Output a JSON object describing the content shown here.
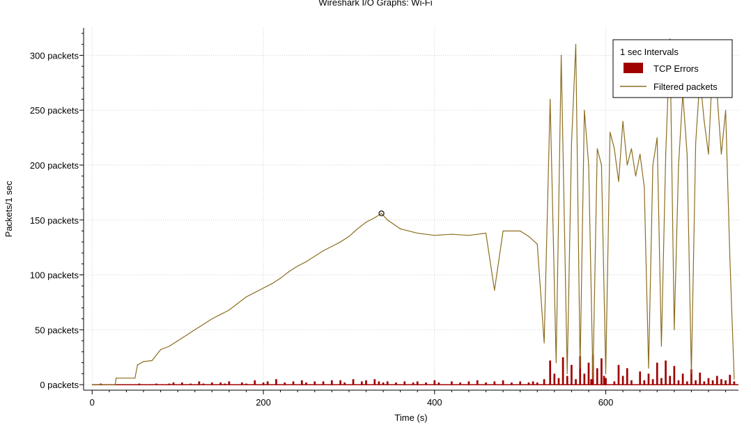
{
  "window_title": "Wireshark I/O Graphs: Wi-Fi",
  "chart_data": {
    "type": "line",
    "title": "Wireshark I/O Graphs: Wi-Fi",
    "xlabel": "Time (s)",
    "ylabel": "Packets/1 sec",
    "xlim": [
      -10,
      755
    ],
    "ylim": [
      -5,
      325
    ],
    "x_ticks": [
      0,
      200,
      400,
      600
    ],
    "y_ticks": [
      0,
      50,
      100,
      150,
      200,
      250,
      300
    ],
    "y_tick_suffix": " packets",
    "grid": true,
    "legend": {
      "title": "1 sec Intervals",
      "placement": "top-right",
      "entries": [
        {
          "name": "TCP Errors",
          "style": "bar",
          "color": "#a00000"
        },
        {
          "name": "Filtered packets",
          "style": "line",
          "color": "#8b6d1e"
        }
      ]
    },
    "marker_point": {
      "x": 338,
      "y": 156
    },
    "series": [
      {
        "name": "Filtered packets",
        "type": "line",
        "color": "#8b6d1e",
        "points": [
          [
            0,
            0
          ],
          [
            27,
            0
          ],
          [
            28,
            6
          ],
          [
            40,
            6
          ],
          [
            50,
            6
          ],
          [
            53,
            18
          ],
          [
            60,
            21
          ],
          [
            70,
            22
          ],
          [
            80,
            32
          ],
          [
            90,
            35
          ],
          [
            100,
            40
          ],
          [
            110,
            45
          ],
          [
            120,
            50
          ],
          [
            130,
            55
          ],
          [
            140,
            60
          ],
          [
            150,
            64
          ],
          [
            160,
            68
          ],
          [
            170,
            74
          ],
          [
            180,
            80
          ],
          [
            190,
            84
          ],
          [
            200,
            88
          ],
          [
            210,
            92
          ],
          [
            220,
            97
          ],
          [
            230,
            103
          ],
          [
            240,
            108
          ],
          [
            250,
            112
          ],
          [
            260,
            117
          ],
          [
            270,
            122
          ],
          [
            280,
            126
          ],
          [
            290,
            130
          ],
          [
            300,
            135
          ],
          [
            310,
            142
          ],
          [
            320,
            148
          ],
          [
            330,
            152
          ],
          [
            338,
            156
          ],
          [
            345,
            150
          ],
          [
            360,
            142
          ],
          [
            380,
            138
          ],
          [
            400,
            136
          ],
          [
            420,
            137
          ],
          [
            440,
            136
          ],
          [
            460,
            138
          ],
          [
            470,
            86
          ],
          [
            480,
            140
          ],
          [
            500,
            140
          ],
          [
            510,
            135
          ],
          [
            520,
            128
          ],
          [
            528,
            38
          ],
          [
            535,
            260
          ],
          [
            542,
            20
          ],
          [
            548,
            300
          ],
          [
            555,
            10
          ],
          [
            560,
            220
          ],
          [
            565,
            310
          ],
          [
            570,
            15
          ],
          [
            575,
            250
          ],
          [
            580,
            200
          ],
          [
            585,
            5
          ],
          [
            590,
            215
          ],
          [
            595,
            200
          ],
          [
            600,
            10
          ],
          [
            605,
            230
          ],
          [
            610,
            215
          ],
          [
            615,
            185
          ],
          [
            620,
            240
          ],
          [
            625,
            200
          ],
          [
            630,
            215
          ],
          [
            635,
            190
          ],
          [
            640,
            210
          ],
          [
            645,
            180
          ],
          [
            650,
            15
          ],
          [
            655,
            200
          ],
          [
            660,
            225
          ],
          [
            665,
            35
          ],
          [
            670,
            210
          ],
          [
            675,
            315
          ],
          [
            680,
            50
          ],
          [
            685,
            200
          ],
          [
            690,
            265
          ],
          [
            695,
            210
          ],
          [
            700,
            10
          ],
          [
            705,
            220
          ],
          [
            710,
            280
          ],
          [
            715,
            240
          ],
          [
            720,
            210
          ],
          [
            725,
            295
          ],
          [
            730,
            265
          ],
          [
            735,
            210
          ],
          [
            740,
            250
          ],
          [
            745,
            115
          ],
          [
            750,
            5
          ]
        ]
      },
      {
        "name": "TCP Errors",
        "type": "bar",
        "color": "#a00000",
        "points": [
          [
            10,
            1
          ],
          [
            55,
            1
          ],
          [
            75,
            1
          ],
          [
            90,
            1
          ],
          [
            95,
            2
          ],
          [
            105,
            2
          ],
          [
            115,
            1
          ],
          [
            125,
            3
          ],
          [
            130,
            1
          ],
          [
            140,
            2
          ],
          [
            150,
            2
          ],
          [
            155,
            1
          ],
          [
            160,
            3
          ],
          [
            175,
            2
          ],
          [
            180,
            1
          ],
          [
            190,
            4
          ],
          [
            200,
            2
          ],
          [
            205,
            3
          ],
          [
            215,
            5
          ],
          [
            225,
            2
          ],
          [
            235,
            3
          ],
          [
            245,
            4
          ],
          [
            250,
            2
          ],
          [
            260,
            3
          ],
          [
            270,
            3
          ],
          [
            280,
            4
          ],
          [
            290,
            4
          ],
          [
            295,
            2
          ],
          [
            305,
            5
          ],
          [
            315,
            3
          ],
          [
            320,
            4
          ],
          [
            330,
            5
          ],
          [
            335,
            3
          ],
          [
            340,
            2
          ],
          [
            345,
            3
          ],
          [
            355,
            2
          ],
          [
            365,
            3
          ],
          [
            375,
            2
          ],
          [
            380,
            3
          ],
          [
            390,
            2
          ],
          [
            400,
            4
          ],
          [
            405,
            2
          ],
          [
            420,
            3
          ],
          [
            430,
            2
          ],
          [
            440,
            3
          ],
          [
            450,
            4
          ],
          [
            460,
            2
          ],
          [
            470,
            3
          ],
          [
            480,
            4
          ],
          [
            490,
            2
          ],
          [
            500,
            3
          ],
          [
            510,
            2
          ],
          [
            515,
            3
          ],
          [
            520,
            2
          ],
          [
            528,
            5
          ],
          [
            535,
            22
          ],
          [
            540,
            10
          ],
          [
            545,
            6
          ],
          [
            550,
            25
          ],
          [
            555,
            8
          ],
          [
            560,
            18
          ],
          [
            565,
            5
          ],
          [
            570,
            26
          ],
          [
            575,
            10
          ],
          [
            580,
            20
          ],
          [
            583,
            5
          ],
          [
            585,
            27
          ],
          [
            590,
            15
          ],
          [
            595,
            24
          ],
          [
            598,
            8
          ],
          [
            600,
            6
          ],
          [
            610,
            3
          ],
          [
            615,
            18
          ],
          [
            620,
            8
          ],
          [
            625,
            15
          ],
          [
            630,
            4
          ],
          [
            640,
            12
          ],
          [
            645,
            4
          ],
          [
            650,
            10
          ],
          [
            655,
            5
          ],
          [
            660,
            20
          ],
          [
            665,
            6
          ],
          [
            670,
            22
          ],
          [
            675,
            8
          ],
          [
            680,
            17
          ],
          [
            685,
            4
          ],
          [
            690,
            10
          ],
          [
            695,
            3
          ],
          [
            700,
            14
          ],
          [
            705,
            4
          ],
          [
            710,
            11
          ],
          [
            715,
            3
          ],
          [
            720,
            6
          ],
          [
            725,
            4
          ],
          [
            730,
            8
          ],
          [
            735,
            5
          ],
          [
            740,
            4
          ],
          [
            745,
            9
          ],
          [
            750,
            3
          ]
        ]
      }
    ]
  }
}
